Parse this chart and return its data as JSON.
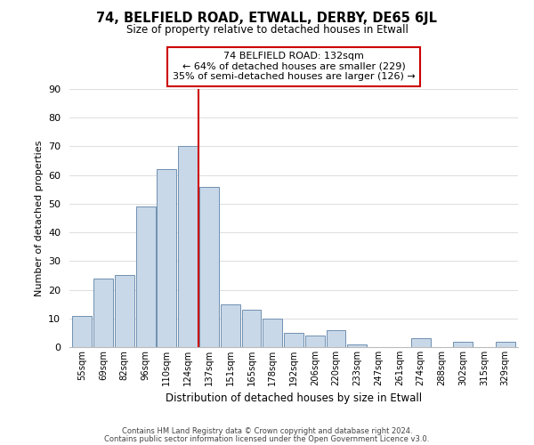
{
  "title": "74, BELFIELD ROAD, ETWALL, DERBY, DE65 6JL",
  "subtitle": "Size of property relative to detached houses in Etwall",
  "xlabel": "Distribution of detached houses by size in Etwall",
  "ylabel": "Number of detached properties",
  "bar_labels": [
    "55sqm",
    "69sqm",
    "82sqm",
    "96sqm",
    "110sqm",
    "124sqm",
    "137sqm",
    "151sqm",
    "165sqm",
    "178sqm",
    "192sqm",
    "206sqm",
    "220sqm",
    "233sqm",
    "247sqm",
    "261sqm",
    "274sqm",
    "288sqm",
    "302sqm",
    "315sqm",
    "329sqm"
  ],
  "bar_heights": [
    11,
    24,
    25,
    49,
    62,
    70,
    56,
    15,
    13,
    10,
    5,
    4,
    6,
    1,
    0,
    0,
    3,
    0,
    2,
    0,
    2
  ],
  "bar_color": "#c8d8e8",
  "bar_edge_color": "#7090b0",
  "vline_x_index": 5.5,
  "vline_color": "#cc0000",
  "annotation_text": "74 BELFIELD ROAD: 132sqm\n← 64% of detached houses are smaller (229)\n35% of semi-detached houses are larger (126) →",
  "annotation_box_color": "#ffffff",
  "annotation_box_edge": "#cc0000",
  "ylim": [
    0,
    90
  ],
  "yticks": [
    0,
    10,
    20,
    30,
    40,
    50,
    60,
    70,
    80,
    90
  ],
  "footer1": "Contains HM Land Registry data © Crown copyright and database right 2024.",
  "footer2": "Contains public sector information licensed under the Open Government Licence v3.0.",
  "background_color": "#ffffff",
  "grid_color": "#dddddd"
}
